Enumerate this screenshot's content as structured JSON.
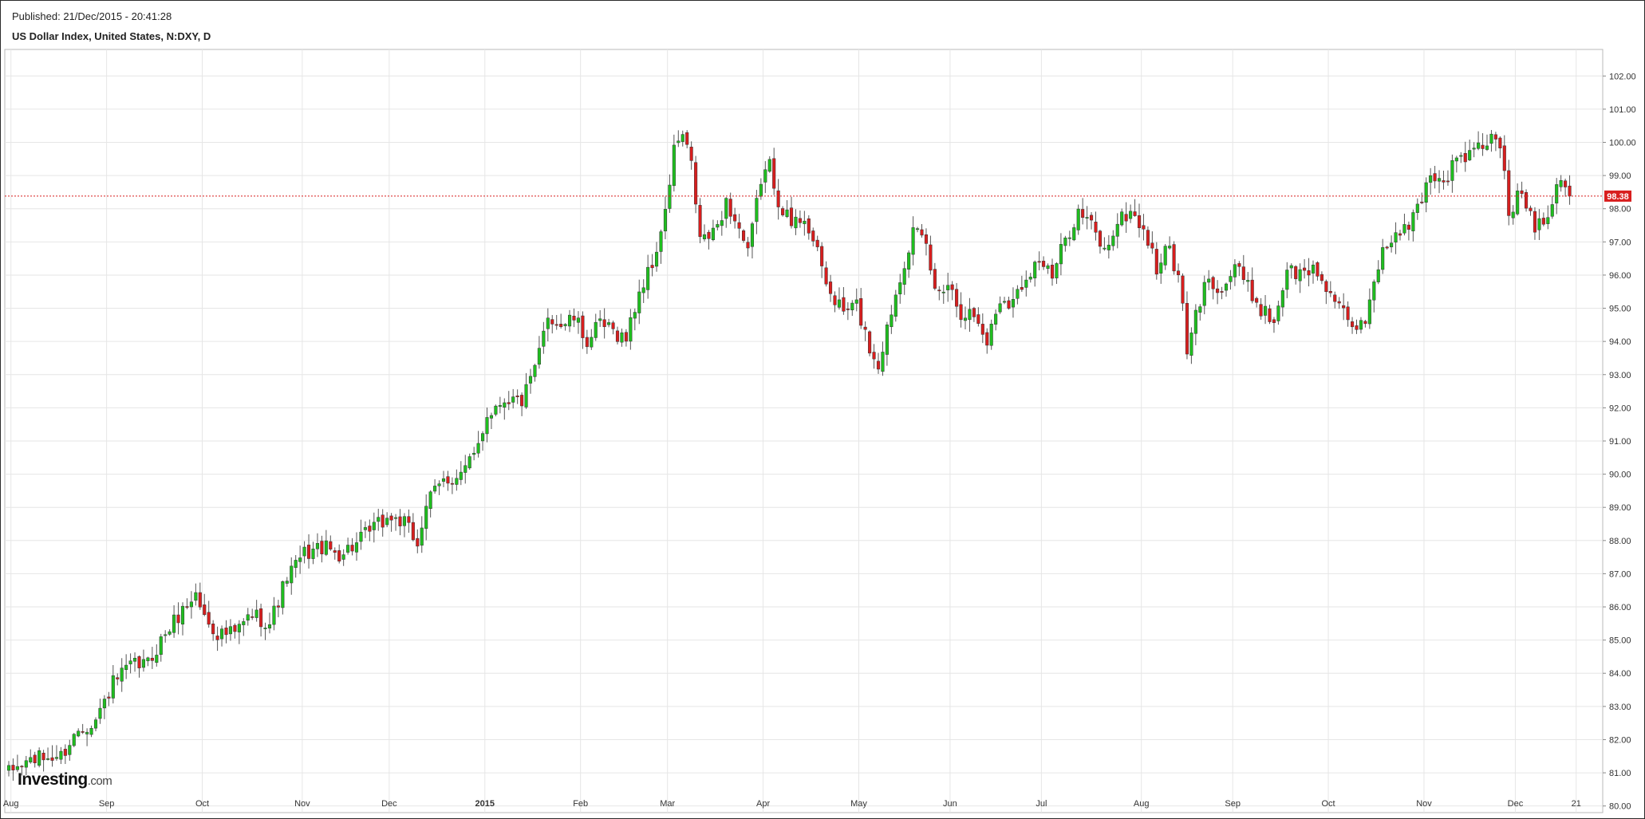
{
  "header": {
    "published": "Published: 21/Dec/2015 - 20:41:28",
    "title": "US Dollar Index, United States, N:DXY, D"
  },
  "logo": {
    "brand": "Investing",
    "domain": ".com"
  },
  "colors": {
    "up": "#1fbf1f",
    "down": "#d81e1e",
    "grid": "#e6e6e6",
    "last_price_line": "#d81e1e"
  },
  "chart_data": {
    "type": "candlestick",
    "title": "US Dollar Index, United States, N:DXY, D",
    "ylim": [
      79.8,
      102.8
    ],
    "y_ticks": [
      "80.00",
      "81.00",
      "82.00",
      "83.00",
      "84.00",
      "85.00",
      "86.00",
      "87.00",
      "88.00",
      "89.00",
      "90.00",
      "91.00",
      "92.00",
      "93.00",
      "94.00",
      "95.00",
      "96.00",
      "97.00",
      "98.00",
      "99.00",
      "100.00",
      "101.00",
      "102.00"
    ],
    "x_ticks": [
      {
        "label": "Aug",
        "pos": 0.5
      },
      {
        "label": "Sep",
        "pos": 22.5
      },
      {
        "label": "Oct",
        "pos": 44.5
      },
      {
        "label": "Nov",
        "pos": 67.5
      },
      {
        "label": "Dec",
        "pos": 87.5
      },
      {
        "label": "2015",
        "pos": 109.5,
        "year": true
      },
      {
        "label": "Feb",
        "pos": 131.5
      },
      {
        "label": "Mar",
        "pos": 151.5
      },
      {
        "label": "Apr",
        "pos": 173.5
      },
      {
        "label": "May",
        "pos": 195.5
      },
      {
        "label": "Jun",
        "pos": 216.5
      },
      {
        "label": "Jul",
        "pos": 237.5
      },
      {
        "label": "Aug",
        "pos": 260.5
      },
      {
        "label": "Sep",
        "pos": 281.5
      },
      {
        "label": "Oct",
        "pos": 303.5
      },
      {
        "label": "Nov",
        "pos": 325.5
      },
      {
        "label": "Dec",
        "pos": 346.5
      },
      {
        "label": "21",
        "pos": 360.5
      }
    ],
    "last_price": "98.38",
    "last_value": 98.38,
    "grid": true,
    "anchors": [
      [
        0,
        81.0
      ],
      [
        5,
        81.4
      ],
      [
        12,
        81.5
      ],
      [
        16,
        82.3
      ],
      [
        20,
        82.6
      ],
      [
        24,
        83.7
      ],
      [
        28,
        84.2
      ],
      [
        32,
        84.3
      ],
      [
        36,
        85.2
      ],
      [
        40,
        85.9
      ],
      [
        43,
        86.4
      ],
      [
        45,
        85.7
      ],
      [
        48,
        85.2
      ],
      [
        52,
        85.2
      ],
      [
        56,
        85.8
      ],
      [
        60,
        85.5
      ],
      [
        64,
        86.9
      ],
      [
        68,
        87.6
      ],
      [
        72,
        87.8
      ],
      [
        76,
        87.6
      ],
      [
        80,
        87.9
      ],
      [
        84,
        88.4
      ],
      [
        88,
        88.7
      ],
      [
        91,
        88.5
      ],
      [
        94,
        87.9
      ],
      [
        96,
        89.1
      ],
      [
        100,
        89.8
      ],
      [
        104,
        90.0
      ],
      [
        107,
        90.5
      ],
      [
        110,
        91.8
      ],
      [
        114,
        92.3
      ],
      [
        118,
        92.2
      ],
      [
        121,
        93.1
      ],
      [
        124,
        94.8
      ],
      [
        127,
        94.5
      ],
      [
        130,
        94.7
      ],
      [
        133,
        94.0
      ],
      [
        136,
        94.5
      ],
      [
        139,
        94.3
      ],
      [
        142,
        94.1
      ],
      [
        145,
        95.5
      ],
      [
        148,
        96.3
      ],
      [
        151,
        97.8
      ],
      [
        153,
        99.8
      ],
      [
        155,
        100.2
      ],
      [
        157,
        99.3
      ],
      [
        159,
        97.1
      ],
      [
        162,
        97.2
      ],
      [
        165,
        98.2
      ],
      [
        168,
        97.4
      ],
      [
        170,
        96.6
      ],
      [
        173,
        98.9
      ],
      [
        175,
        99.3
      ],
      [
        177,
        98.3
      ],
      [
        180,
        97.5
      ],
      [
        183,
        97.8
      ],
      [
        186,
        96.6
      ],
      [
        189,
        95.4
      ],
      [
        192,
        94.9
      ],
      [
        195,
        95.1
      ],
      [
        198,
        93.8
      ],
      [
        200,
        93.3
      ],
      [
        202,
        94.4
      ],
      [
        205,
        96.0
      ],
      [
        208,
        97.3
      ],
      [
        211,
        96.9
      ],
      [
        213,
        95.5
      ],
      [
        216,
        95.8
      ],
      [
        219,
        94.9
      ],
      [
        222,
        94.8
      ],
      [
        225,
        94.0
      ],
      [
        228,
        95.3
      ],
      [
        231,
        95.2
      ],
      [
        234,
        96.0
      ],
      [
        237,
        96.5
      ],
      [
        240,
        95.9
      ],
      [
        243,
        97.1
      ],
      [
        246,
        97.9
      ],
      [
        249,
        97.5
      ],
      [
        252,
        96.7
      ],
      [
        255,
        97.6
      ],
      [
        258,
        97.9
      ],
      [
        261,
        97.4
      ],
      [
        264,
        96.2
      ],
      [
        267,
        96.9
      ],
      [
        270,
        95.2
      ],
      [
        271,
        93.5
      ],
      [
        273,
        94.8
      ],
      [
        276,
        96.0
      ],
      [
        279,
        95.5
      ],
      [
        282,
        96.3
      ],
      [
        285,
        95.6
      ],
      [
        288,
        95.0
      ],
      [
        291,
        94.6
      ],
      [
        294,
        96.2
      ],
      [
        297,
        96.0
      ],
      [
        300,
        96.2
      ],
      [
        303,
        95.7
      ],
      [
        306,
        95.0
      ],
      [
        309,
        94.3
      ],
      [
        312,
        94.7
      ],
      [
        315,
        96.4
      ],
      [
        318,
        97.1
      ],
      [
        321,
        97.3
      ],
      [
        324,
        98.0
      ],
      [
        327,
        99.1
      ],
      [
        330,
        98.8
      ],
      [
        333,
        99.5
      ],
      [
        336,
        99.6
      ],
      [
        339,
        99.9
      ],
      [
        342,
        100.2
      ],
      [
        344,
        99.1
      ],
      [
        345,
        97.9
      ],
      [
        348,
        98.5
      ],
      [
        351,
        97.5
      ],
      [
        354,
        97.9
      ],
      [
        357,
        99.1
      ],
      [
        359,
        98.38
      ]
    ]
  }
}
